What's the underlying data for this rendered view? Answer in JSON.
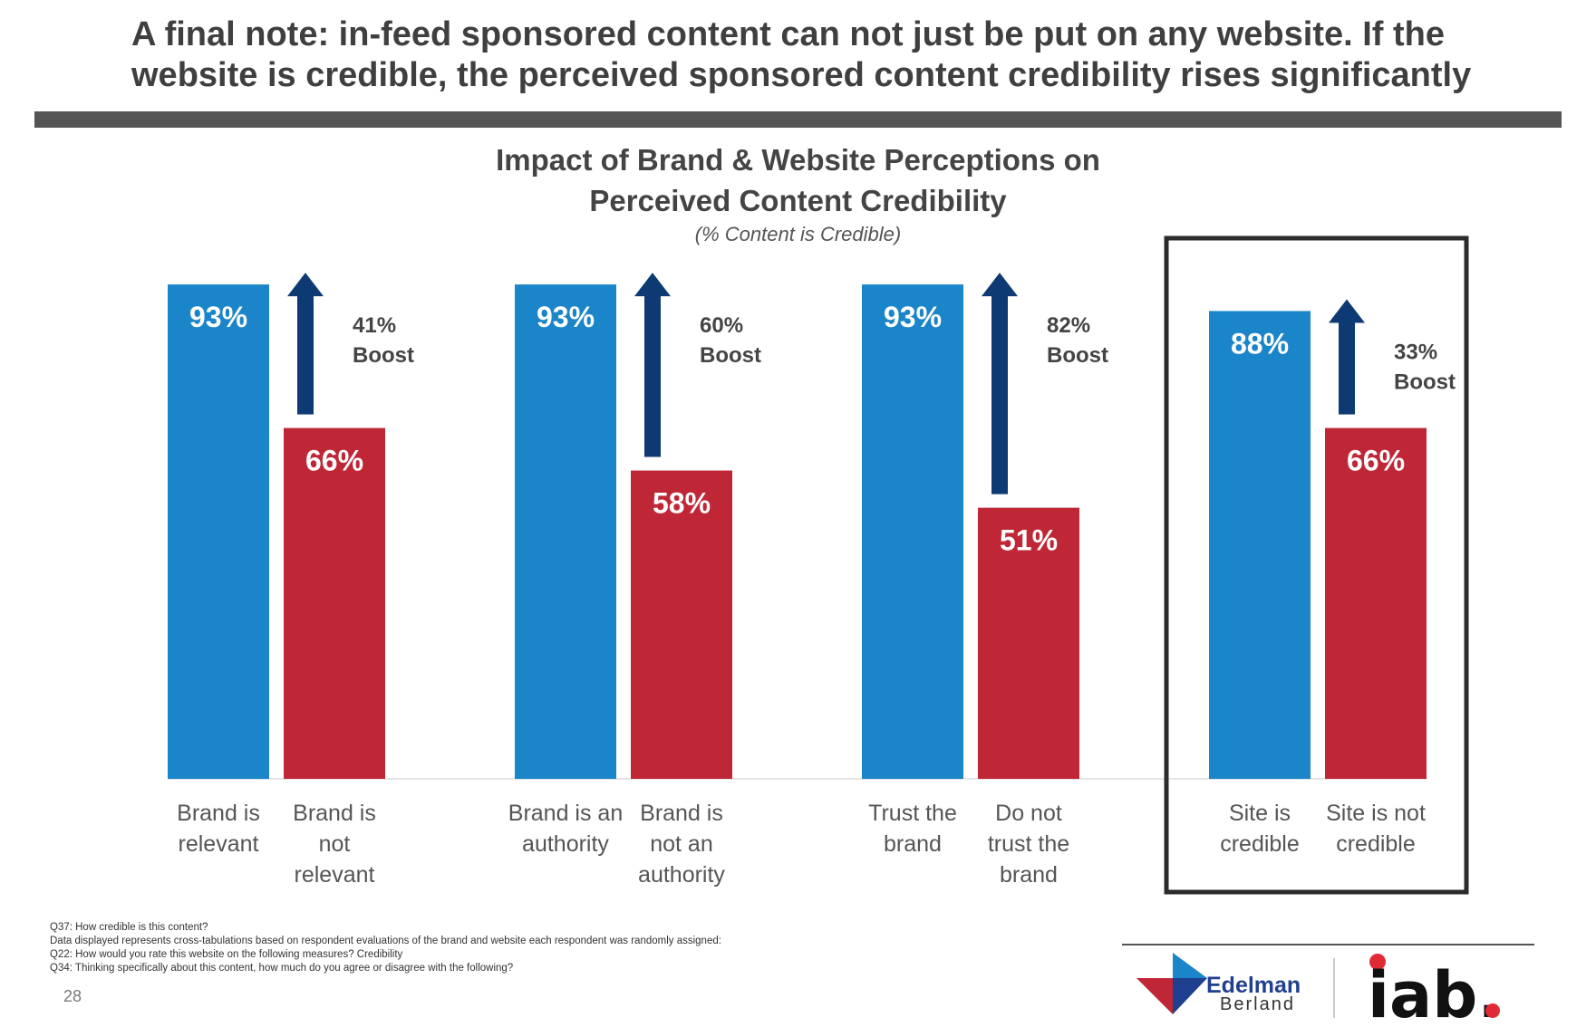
{
  "headline": "A final note: in-feed sponsored content can not just be put on any website. If the website is credible, the perceived sponsored content credibility rises significantly",
  "chart_data": {
    "type": "bar",
    "title_line1": "Impact of Brand & Website Perceptions on",
    "title_line2": "Perceived Content Credibility",
    "subtitle": "(% Content is Credible)",
    "ylim": [
      0,
      100
    ],
    "grid": false,
    "groups": [
      {
        "bars": [
          {
            "label": [
              "Brand is",
              "relevant"
            ],
            "value": 93,
            "value_label": "93%",
            "series": "positive"
          },
          {
            "label": [
              "Brand is",
              "not",
              "relevant"
            ],
            "value": 66,
            "value_label": "66%",
            "series": "negative"
          }
        ],
        "boost": [
          "41%",
          "Boost"
        ]
      },
      {
        "bars": [
          {
            "label": [
              "Brand is an",
              "authority"
            ],
            "value": 93,
            "value_label": "93%",
            "series": "positive"
          },
          {
            "label": [
              "Brand is",
              "not an",
              "authority"
            ],
            "value": 58,
            "value_label": "58%",
            "series": "negative"
          }
        ],
        "boost": [
          "60%",
          "Boost"
        ]
      },
      {
        "bars": [
          {
            "label": [
              "Trust the",
              "brand"
            ],
            "value": 93,
            "value_label": "93%",
            "series": "positive"
          },
          {
            "label": [
              "Do not",
              "trust the",
              "brand"
            ],
            "value": 51,
            "value_label": "51%",
            "series": "negative"
          }
        ],
        "boost": [
          "82%",
          "Boost"
        ]
      },
      {
        "bars": [
          {
            "label": [
              "Site is",
              "credible"
            ],
            "value": 88,
            "value_label": "88%",
            "series": "positive"
          },
          {
            "label": [
              "Site is not",
              "credible"
            ],
            "value": 66,
            "value_label": "66%",
            "series": "negative"
          }
        ],
        "boost": [
          "33%",
          "Boost"
        ],
        "highlighted": true
      }
    ],
    "colors": {
      "positive": "#1b85c9",
      "negative": "#bf2737",
      "arrow": "#0d3a73"
    }
  },
  "footnotes": [
    "Q37: How credible is this content?",
    "Data displayed represents cross-tabulations based on respondent evaluations of the brand and website each respondent was randomly assigned:",
    "Q22: How would you rate this website on the following measures? Credibility",
    "Q34: Thinking specifically about this content, how much do you agree or disagree with the following?"
  ],
  "page_number": "28",
  "logos": {
    "edelman_line1": "Edelman",
    "edelman_line2": "Berland",
    "iab": "iab."
  }
}
